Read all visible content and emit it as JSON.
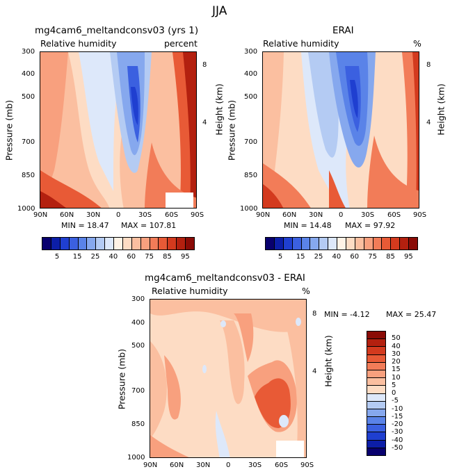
{
  "figure_title": "JJA",
  "chart_data": [
    {
      "type": "heatmap",
      "title": "mg4cam6_meltandconsv03 (yrs 1)",
      "subtitle_left": "Relative humidity",
      "subtitle_right": "percent",
      "ylabel": "Pressure (mb)",
      "ylabel_right": "Height (km)",
      "x_ticks": [
        "90N",
        "60N",
        "30N",
        "0",
        "30S",
        "60S",
        "90S"
      ],
      "y_ticks": [
        "300",
        "400",
        "500",
        "700",
        "850",
        "1000"
      ],
      "y_ticks_right": [
        "8",
        "4"
      ],
      "min_text": "MIN = 18.47",
      "max_text": "MAX = 107.81"
    },
    {
      "type": "heatmap",
      "title": "ERAI",
      "subtitle_left": "Relative humidity",
      "subtitle_right": "%",
      "ylabel": "Pressure (mb)",
      "ylabel_right": "Height (km)",
      "x_ticks": [
        "90N",
        "60N",
        "30N",
        "0",
        "30S",
        "60S",
        "90S"
      ],
      "y_ticks": [
        "300",
        "400",
        "500",
        "700",
        "850",
        "1000"
      ],
      "y_ticks_right": [
        "8",
        "4"
      ],
      "min_text": "MIN = 14.48",
      "max_text": "MAX = 97.92"
    },
    {
      "type": "heatmap",
      "title": "mg4cam6_meltandconsv03 - ERAI",
      "subtitle_left": "Relative humidity",
      "subtitle_right": "%",
      "ylabel": "Pressure (mb)",
      "ylabel_right": "Height (km)",
      "x_ticks": [
        "90N",
        "60N",
        "30N",
        "0",
        "30S",
        "60S",
        "90S"
      ],
      "y_ticks": [
        "300",
        "400",
        "500",
        "700",
        "850",
        "1000"
      ],
      "y_ticks_right": [
        "8",
        "4"
      ],
      "min_text": "MIN = -4.12",
      "max_text": "MAX = 25.47"
    }
  ],
  "colorbar_top": {
    "labels": [
      "5",
      "15",
      "25",
      "40",
      "60",
      "75",
      "85",
      "95"
    ],
    "colors": [
      "#08006e",
      "#0c1ea8",
      "#1f3fd0",
      "#3b60e0",
      "#5a83e8",
      "#86a8ee",
      "#b4cbf3",
      "#dde8fa",
      "#fff3e6",
      "#fddcc4",
      "#fbbfa0",
      "#f8a07e",
      "#f27c58",
      "#e85a36",
      "#d33a1e",
      "#b3200f",
      "#8a0b06"
    ]
  },
  "colorbar_diff": {
    "labels": [
      "50",
      "40",
      "30",
      "20",
      "15",
      "10",
      "5",
      "0",
      "-5",
      "-10",
      "-15",
      "-20",
      "-30",
      "-40",
      "-50"
    ],
    "colors": [
      "#8a0b06",
      "#b3200f",
      "#d33a1e",
      "#e85a36",
      "#f27c58",
      "#f8a07e",
      "#fbbfa0",
      "#fddcc4",
      "#dde8fa",
      "#b4cbf3",
      "#86a8ee",
      "#5a83e8",
      "#3b60e0",
      "#1f3fd0",
      "#0c1ea8",
      "#08006e"
    ]
  }
}
